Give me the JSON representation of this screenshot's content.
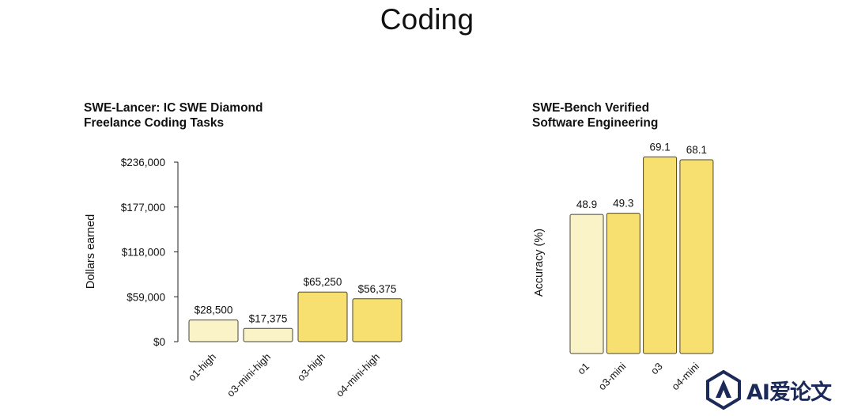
{
  "page_title": "Coding",
  "colors": {
    "light_bar": "#faf3c8",
    "dark_bar": "#f7e070",
    "bar_stroke": "#4a4433",
    "axis": "#222222",
    "watermark": "#1c2a5a"
  },
  "watermark": {
    "text": "AI爱论文",
    "icon": "logo-icon"
  },
  "chart_data": [
    {
      "type": "bar",
      "title_lines": [
        "SWE-Lancer: IC SWE Diamond",
        "Freelance Coding Tasks"
      ],
      "ylabel": "Dollars earned",
      "ylim": [
        0,
        236000
      ],
      "yticks": [
        "$236,000",
        "$177,000",
        "$118,000",
        "$59,000",
        "$0"
      ],
      "ytick_values": [
        236000,
        177000,
        118000,
        59000,
        0
      ],
      "categories": [
        "o1-high",
        "o3-mini-high",
        "o3-high",
        "o4-mini-high"
      ],
      "values": [
        28500,
        17375,
        65250,
        56375
      ],
      "value_labels": [
        "$28,500",
        "$17,375",
        "$65,250",
        "$56,375"
      ],
      "bar_shades": [
        "light",
        "light",
        "dark",
        "dark"
      ]
    },
    {
      "type": "bar",
      "title_lines": [
        "SWE-Bench Verified",
        "Software Engineering"
      ],
      "ylabel": "Accuracy (%)",
      "ylim": [
        0,
        72
      ],
      "categories": [
        "o1",
        "o3-mini",
        "o3",
        "o4-mini"
      ],
      "values": [
        48.9,
        49.3,
        69.1,
        68.1
      ],
      "value_labels": [
        "48.9",
        "49.3",
        "69.1",
        "68.1"
      ],
      "bar_shades": [
        "light",
        "dark",
        "dark",
        "dark"
      ]
    }
  ]
}
